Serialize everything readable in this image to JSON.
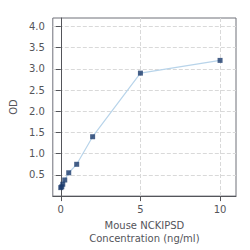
{
  "chart_data": {
    "type": "line",
    "x": [
      0,
      0.0625,
      0.125,
      0.25,
      0.5,
      1,
      2,
      5,
      10
    ],
    "series": [
      {
        "type": "line",
        "color": "#b8d4ea",
        "line_style": "solid",
        "values": [
          0.2,
          0.22,
          0.28,
          0.38,
          0.55,
          0.75,
          1.4,
          2.9,
          3.2
        ]
      },
      {
        "type": "scatter",
        "color": "#1a3a6b",
        "marker": "square",
        "values": [
          0.2,
          0.22,
          0.28,
          0.38,
          0.55,
          0.75,
          1.4,
          2.9,
          3.2
        ]
      }
    ],
    "xlabel": "Mouse NCKIPSD\nConcentration (ng/ml)",
    "ylabel": "OD",
    "xlim": [
      -0.5,
      11
    ],
    "ylim": [
      0,
      4.2
    ],
    "xticks": [
      0,
      5,
      10
    ],
    "yticks": [
      0.5,
      {
        "value": 1,
        "label": "1.0"
      },
      1.5,
      {
        "value": 2,
        "label": "2.0"
      },
      2.5,
      {
        "value": 3,
        "label": "3.0"
      },
      3.5,
      {
        "value": 4,
        "label": "4.0"
      }
    ],
    "grid": true
  }
}
